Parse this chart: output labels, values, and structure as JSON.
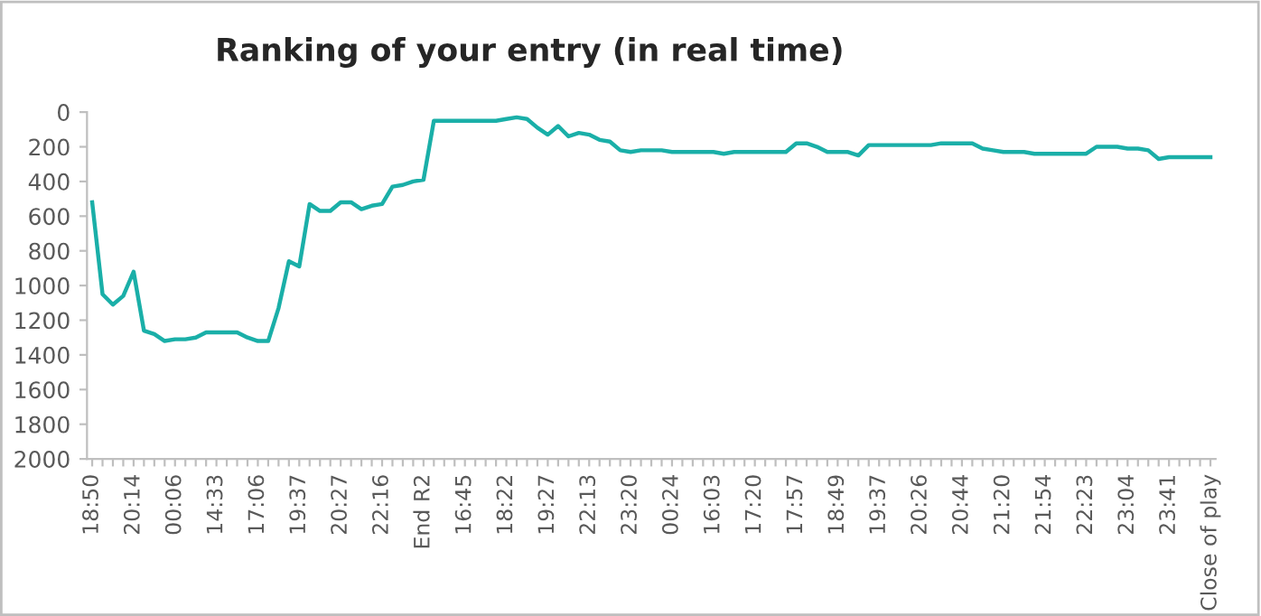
{
  "chart_data": {
    "type": "line",
    "title": "Ranking of your entry (in real time)",
    "categories": [
      "18:50",
      null,
      null,
      null,
      "20:14",
      null,
      null,
      null,
      "00:06",
      null,
      null,
      null,
      "14:33",
      null,
      null,
      null,
      "17:06",
      null,
      null,
      null,
      "19:37",
      null,
      null,
      null,
      "20:27",
      null,
      null,
      null,
      "22:16",
      null,
      null,
      null,
      "End R2",
      null,
      null,
      null,
      "16:45",
      null,
      null,
      null,
      "18:22",
      null,
      null,
      null,
      "19:27",
      null,
      null,
      null,
      "22:13",
      null,
      null,
      null,
      "23:20",
      null,
      null,
      null,
      "00:24",
      null,
      null,
      null,
      "16:03",
      null,
      null,
      null,
      "17:20",
      null,
      null,
      null,
      "17:57",
      null,
      null,
      null,
      "18:49",
      null,
      null,
      null,
      "19:37",
      null,
      null,
      null,
      "20:26",
      null,
      null,
      null,
      "20:44",
      null,
      null,
      null,
      "21:20",
      null,
      null,
      null,
      "21:54",
      null,
      null,
      null,
      "22:23",
      null,
      null,
      null,
      "23:04",
      null,
      null,
      null,
      "23:41",
      null,
      null,
      null,
      "Close of play"
    ],
    "series": [
      {
        "color": "#1aafa8",
        "values": [
          520,
          1050,
          1110,
          1060,
          920,
          1260,
          1280,
          1320,
          1310,
          1310,
          1300,
          1270,
          1270,
          1270,
          1270,
          1300,
          1320,
          1320,
          1130,
          860,
          890,
          530,
          570,
          570,
          520,
          520,
          560,
          540,
          530,
          430,
          420,
          400,
          390,
          50,
          50,
          50,
          50,
          50,
          50,
          50,
          40,
          30,
          40,
          90,
          130,
          80,
          140,
          120,
          130,
          160,
          170,
          220,
          230,
          220,
          220,
          220,
          230,
          230,
          230,
          230,
          230,
          240,
          230,
          230,
          230,
          230,
          230,
          230,
          180,
          180,
          200,
          230,
          230,
          230,
          250,
          190,
          190,
          190,
          190,
          190,
          190,
          190,
          180,
          180,
          180,
          180,
          210,
          220,
          230,
          230,
          230,
          240,
          240,
          240,
          240,
          240,
          240,
          200,
          200,
          200,
          210,
          210,
          220,
          270,
          260,
          260,
          260,
          260,
          260
        ]
      }
    ],
    "ylim": [
      2000,
      0
    ],
    "yticks": [
      0,
      200,
      400,
      600,
      800,
      1000,
      1200,
      1400,
      1600,
      1800,
      2000
    ],
    "grid": false,
    "marker": "none",
    "line_style": "solid"
  }
}
